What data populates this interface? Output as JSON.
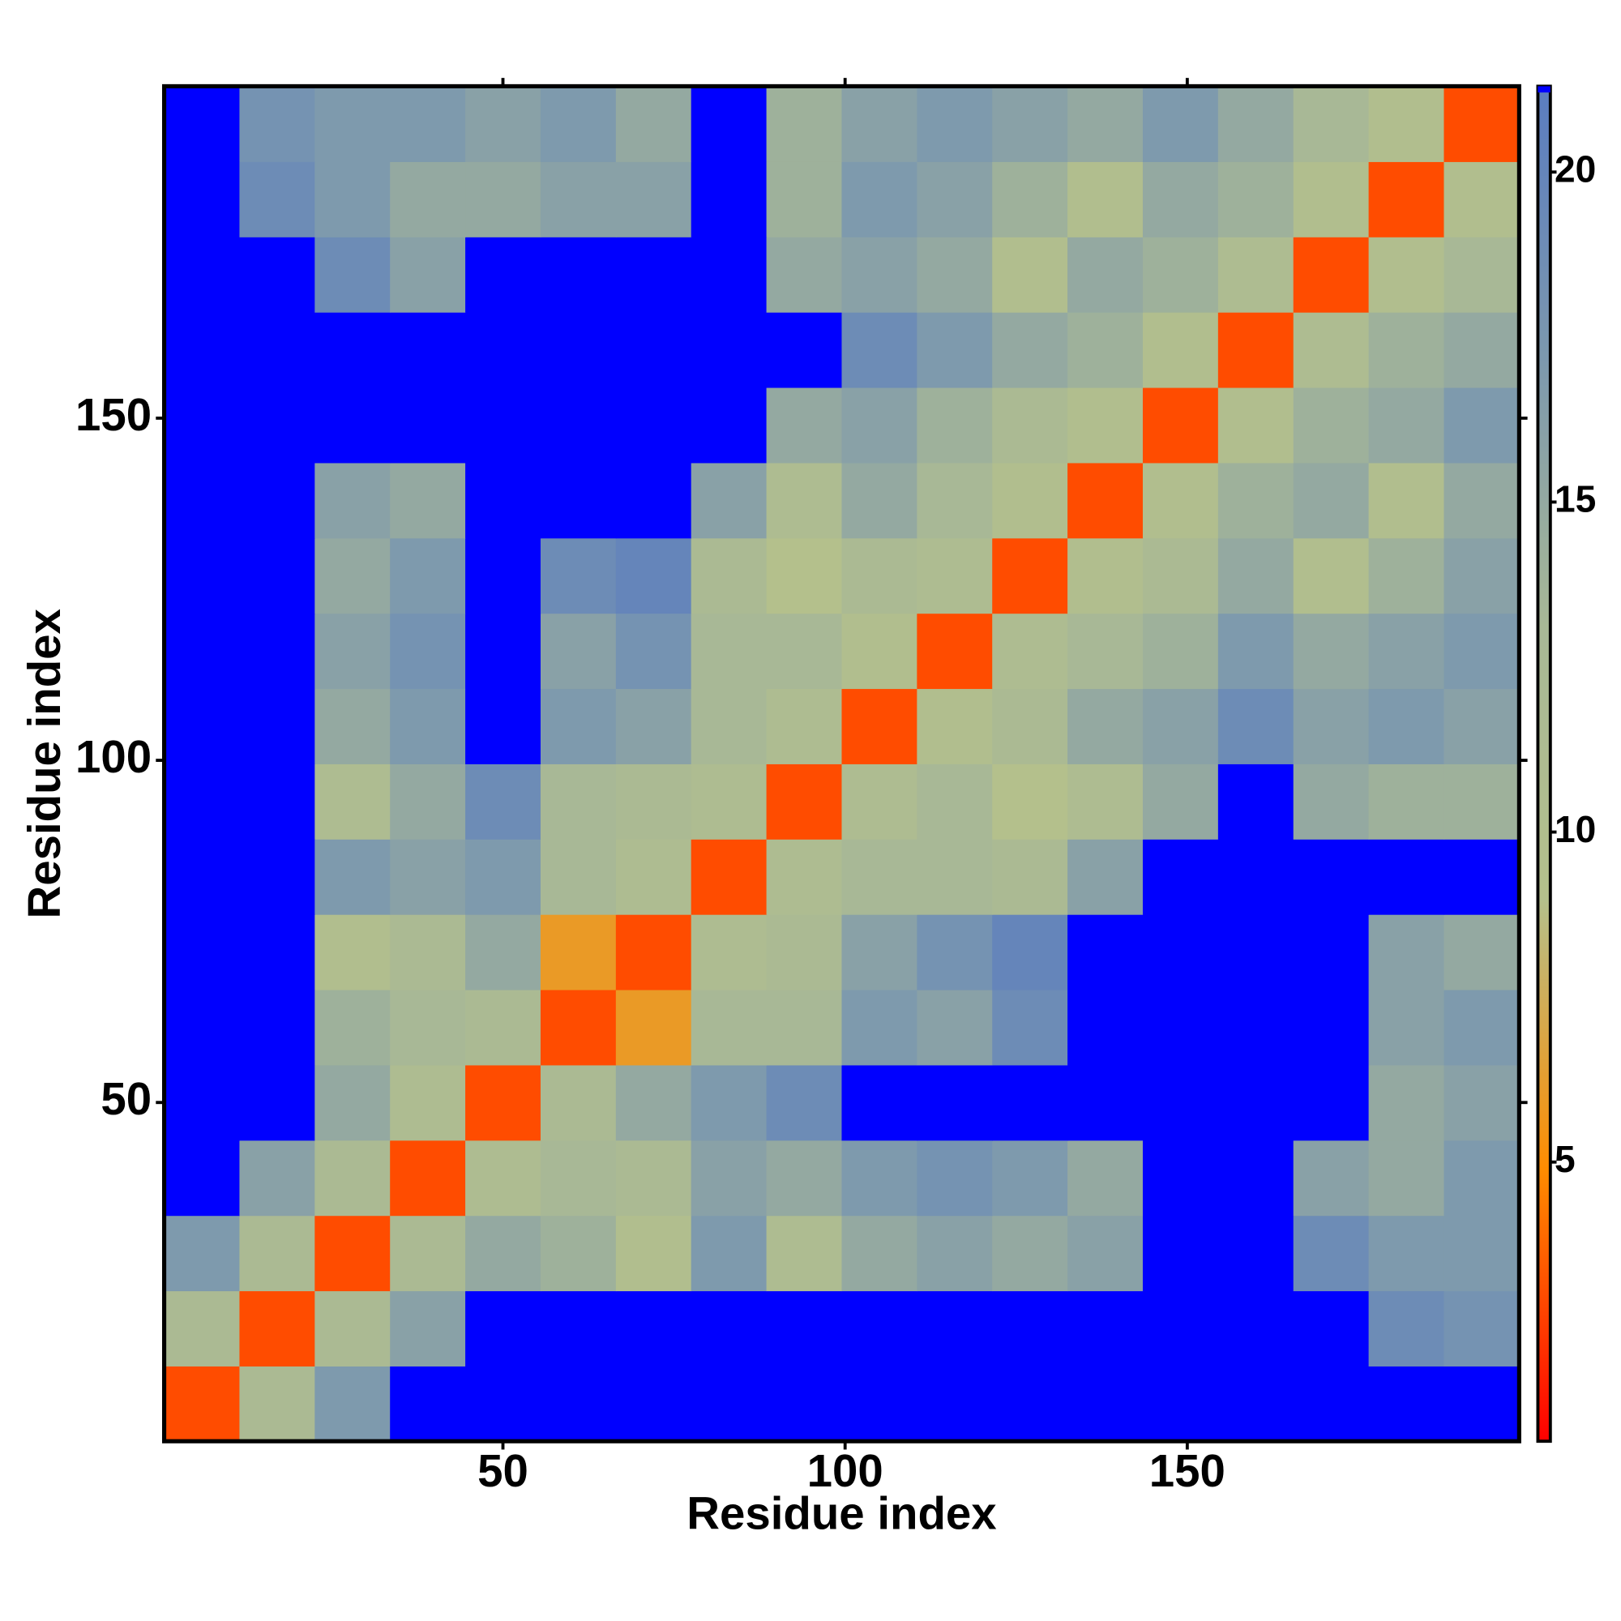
{
  "chart_data": {
    "type": "heatmap",
    "x_label": "Residue index",
    "y_label": "Residue index",
    "xlim": [
      0.5,
      198.5
    ],
    "ylim": [
      0.5,
      198.5
    ],
    "xticks": [
      50,
      100,
      150
    ],
    "yticks": [
      50,
      100,
      150
    ],
    "x_edges": [
      0.5,
      11.5,
      22.5,
      33.5,
      44.5,
      55.5,
      66.5,
      77.5,
      88.5,
      99.5,
      110.5,
      121.5,
      132.5,
      143.5,
      154.5,
      165.5,
      176.5,
      187.5,
      198.5
    ],
    "y_edges": [
      0.5,
      11.5,
      22.5,
      33.5,
      44.5,
      55.5,
      66.5,
      77.5,
      88.5,
      99.5,
      110.5,
      121.5,
      132.5,
      143.5,
      154.5,
      165.5,
      176.5,
      187.5,
      198.5
    ],
    "zlim": [
      0.77,
      21.3
    ],
    "zticks": [
      5,
      10,
      15,
      20
    ],
    "colors": [
      "#ff0000",
      "#ff8c00",
      "#b4c08c",
      "#a8b896",
      "#7c98ae",
      "#5a7cc0"
    ],
    "over_color": "#0000ff",
    "z": [
      [
        3,
        12,
        17,
        25,
        25,
        25,
        25,
        25,
        25,
        25,
        25,
        25,
        25,
        25,
        25,
        25,
        25,
        25
      ],
      [
        12,
        3,
        12,
        16,
        25,
        25,
        25,
        25,
        25,
        25,
        25,
        25,
        25,
        25,
        25,
        25,
        19,
        18
      ],
      [
        17,
        12,
        3,
        12,
        15,
        14,
        10,
        17,
        11,
        15,
        16,
        15,
        16,
        25,
        25,
        19,
        17,
        17
      ],
      [
        25,
        16,
        12,
        3,
        11,
        13,
        12,
        16,
        15,
        17,
        18,
        17,
        15,
        25,
        25,
        16,
        15,
        17
      ],
      [
        25,
        25,
        15,
        11,
        3,
        12,
        15,
        17,
        19,
        25,
        22,
        25,
        25,
        25,
        25,
        25,
        15,
        16
      ],
      [
        25,
        25,
        14,
        13,
        12,
        3,
        6,
        13,
        13,
        17,
        16,
        19,
        25,
        25,
        25,
        22,
        16,
        17
      ],
      [
        25,
        25,
        10,
        12,
        15,
        6,
        3,
        11,
        12,
        16,
        18,
        20,
        25,
        25,
        25,
        22,
        16,
        15
      ],
      [
        25,
        25,
        17,
        16,
        17,
        13,
        11,
        3,
        11,
        13,
        13,
        12,
        16,
        22,
        25,
        25,
        25,
        25
      ],
      [
        25,
        25,
        11,
        15,
        19,
        13,
        12,
        11,
        3,
        11,
        13,
        9,
        11,
        15,
        25,
        15,
        14,
        14
      ],
      [
        25,
        25,
        15,
        17,
        25,
        17,
        16,
        13,
        11,
        3,
        10,
        12,
        15,
        16,
        19,
        16,
        17,
        16
      ],
      [
        25,
        25,
        16,
        18,
        22,
        16,
        18,
        13,
        13,
        10,
        3,
        11,
        13,
        14,
        17,
        15,
        16,
        17
      ],
      [
        25,
        25,
        15,
        17,
        25,
        19,
        20,
        12,
        9,
        12,
        11,
        3,
        10,
        12,
        15,
        10,
        14,
        16
      ],
      [
        25,
        25,
        16,
        15,
        25,
        25,
        25,
        16,
        11,
        15,
        13,
        10,
        3,
        10,
        14,
        15,
        10,
        15
      ],
      [
        25,
        25,
        25,
        25,
        25,
        25,
        25,
        22,
        15,
        16,
        14,
        12,
        10,
        3,
        10,
        14,
        15,
        17
      ],
      [
        25,
        25,
        25,
        25,
        25,
        25,
        25,
        25,
        25,
        19,
        17,
        15,
        14,
        10,
        3,
        11,
        14,
        15
      ],
      [
        25,
        25,
        19,
        16,
        25,
        22,
        22,
        25,
        15,
        16,
        15,
        10,
        15,
        14,
        11,
        3,
        10,
        13
      ],
      [
        25,
        19,
        17,
        15,
        15,
        16,
        16,
        25,
        14,
        17,
        16,
        14,
        10,
        15,
        14,
        10,
        3,
        10
      ],
      [
        25,
        18,
        17,
        17,
        16,
        17,
        15,
        25,
        14,
        16,
        17,
        16,
        15,
        17,
        15,
        13,
        10,
        3
      ]
    ]
  }
}
